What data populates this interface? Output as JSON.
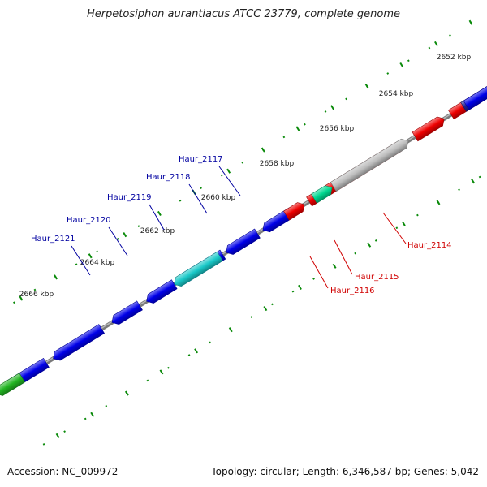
{
  "title": "Herpetosiphon aurantiacus ATCC 23779, complete genome",
  "footer": {
    "accession": "Accession: NC_009972",
    "summary": "Topology: circular; Length: 6,346,587 bp; Genes: 5,042"
  },
  "colors": {
    "forward_gene": "#0000e8",
    "forward_highlight": "#19c8c8",
    "forward_other": "#22b522",
    "reverse_gene": "#ee0000",
    "reverse_highlight": "#00d890",
    "reverse_pseudo": "#bdbdbd",
    "reverse_dark": "#202090",
    "label_forward": "#0000a0",
    "label_reverse": "#d00000",
    "backbone": "#7a7a7a",
    "ticks": "#0a8a0a"
  },
  "chart_data": {
    "type": "genome_map",
    "scale_unit": "kbp",
    "position_labels": [
      "2652 kbp",
      "2654 kbp",
      "2656 kbp",
      "2658 kbp",
      "2660 kbp",
      "2662 kbp",
      "2664 kbp",
      "2666 kbp"
    ],
    "forward_gene_labels": [
      "Haur_2117",
      "Haur_2118",
      "Haur_2119",
      "Haur_2120",
      "Haur_2121"
    ],
    "reverse_gene_labels": [
      "Haur_2114",
      "Haur_2115",
      "Haur_2116"
    ]
  }
}
